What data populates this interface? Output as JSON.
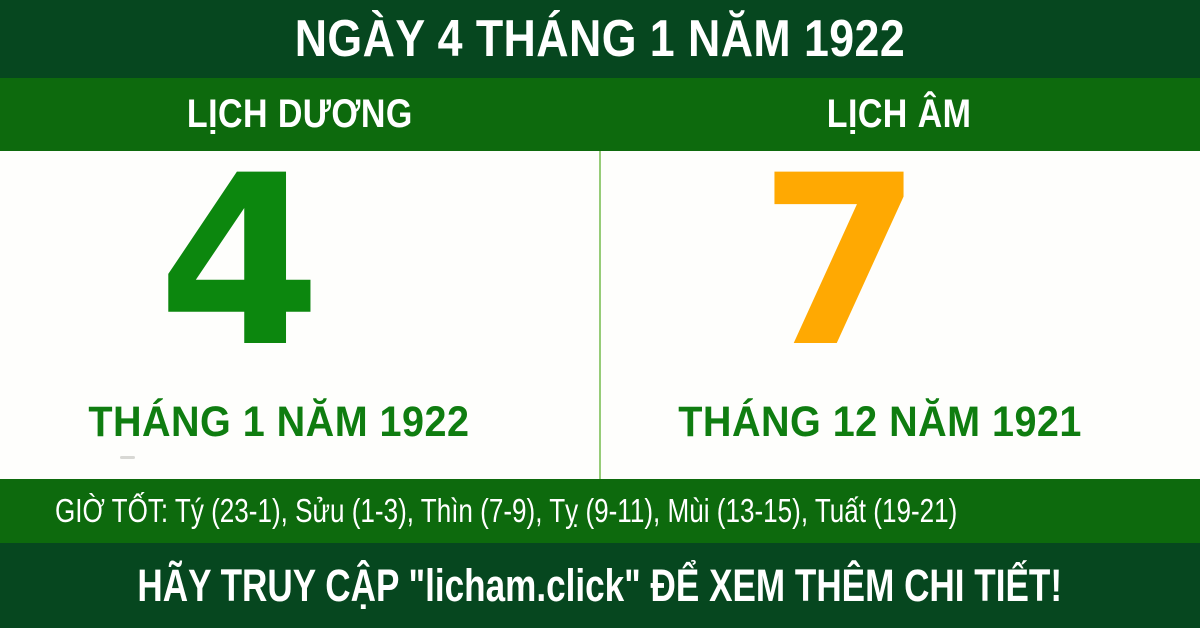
{
  "theme": {
    "colors": {
      "dark_green": "#06471f",
      "bright_green": "#0d6a0d",
      "solar_number_green": "#0c870e",
      "month_text_green": "#0f7d10",
      "lunar_number_orange": "#ffa902",
      "divider_light_green": "#96cc78",
      "text_white": "#ffffff",
      "panel_white": "#fefefc"
    }
  },
  "title_bar": {
    "text": "NGÀY 4 THÁNG 1 NĂM 1922"
  },
  "calendar_header": {
    "solar_label": "LỊCH DƯƠNG",
    "lunar_label": "LỊCH ÂM"
  },
  "solar": {
    "day": "4",
    "month_year": "THÁNG 1 NĂM 1922"
  },
  "lunar": {
    "day": "7",
    "month_year": "THÁNG 12 NĂM 1921"
  },
  "good_hours": {
    "text": "GIỜ TỐT: Tý (23-1), Sửu (1-3), Thìn (7-9), Tỵ (9-11), Mùi (13-15), Tuất (19-21)"
  },
  "footer": {
    "cta_text": "HÃY TRUY CẬP \"licham.click\" ĐỂ XEM THÊM CHI TIẾT!"
  }
}
